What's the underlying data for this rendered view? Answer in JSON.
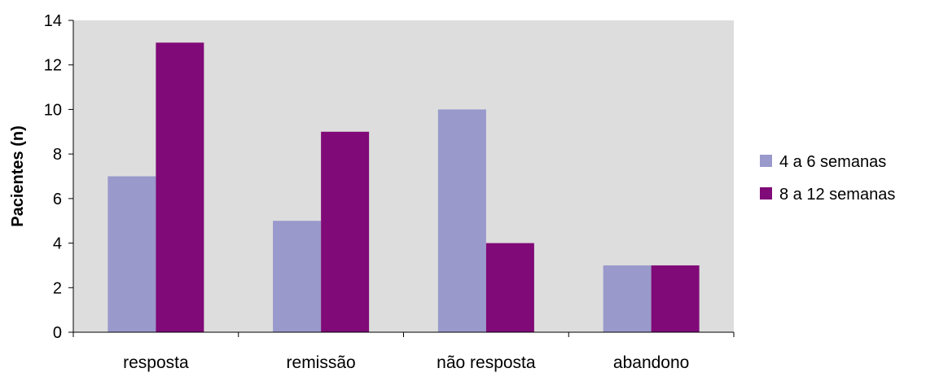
{
  "chart_data": {
    "type": "bar",
    "title": "",
    "xlabel": "",
    "ylabel": "Pacientes (n)",
    "categories": [
      "resposta",
      "remissão",
      "não resposta",
      "abandono"
    ],
    "series": [
      {
        "name": "4 a 6 semanas",
        "values": [
          7,
          5,
          10,
          3
        ],
        "color": "#9999cc"
      },
      {
        "name": "8 a 12 semanas",
        "values": [
          13,
          9,
          4,
          3
        ],
        "color": "#800a77"
      }
    ],
    "ylim": [
      0,
      14
    ],
    "yticks": [
      0,
      2,
      4,
      6,
      8,
      10,
      12,
      14
    ],
    "grid": false,
    "plot_background": "#dddddd",
    "legend_position": "right"
  }
}
